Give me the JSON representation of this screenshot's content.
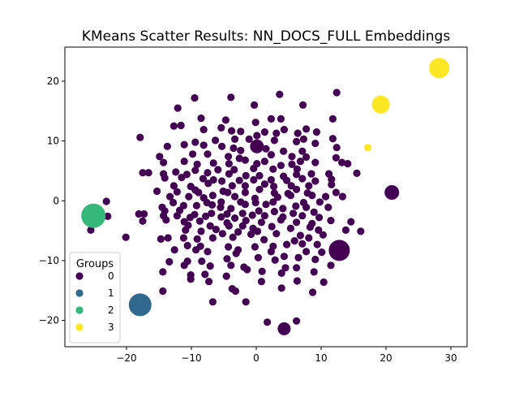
{
  "chart_data": {
    "type": "scatter",
    "title": "KMeans Scatter Results: NN_DOCS_FULL Embeddings",
    "xlabel": "",
    "ylabel": "",
    "xlim": [
      -29.5,
      32.5
    ],
    "ylim": [
      -24.4,
      25.7
    ],
    "xticks": [
      -20,
      -10,
      0,
      10,
      20,
      30
    ],
    "yticks": [
      -20,
      -10,
      0,
      10,
      20
    ],
    "grid": false,
    "legend": {
      "title": "Groups",
      "placement": "lower-left",
      "entries": [
        "0",
        "1",
        "2",
        "3"
      ]
    },
    "colors": {
      "0": "#440154",
      "1": "#31688e",
      "2": "#35b779",
      "3": "#fde725"
    },
    "series": [
      {
        "name": "0",
        "points": [
          [
            -9.5,
            17.2
          ],
          [
            -3.9,
            17.3
          ],
          [
            3.6,
            17.8
          ],
          [
            7.2,
            16
          ],
          [
            12.4,
            18.1
          ],
          [
            -0.3,
            16
          ],
          [
            -12.1,
            15.5
          ],
          [
            -8.5,
            13.8
          ],
          [
            -4.7,
            13.5
          ],
          [
            -0.1,
            13.1
          ],
          [
            2.3,
            13.7
          ],
          [
            3.8,
            13.7
          ],
          [
            11.8,
            13.7
          ],
          [
            -12.7,
            12.5
          ],
          [
            -11.6,
            12.6
          ],
          [
            -8.1,
            11.9
          ],
          [
            -5.4,
            12.2
          ],
          [
            -3.8,
            11.7
          ],
          [
            -2.4,
            11.6
          ],
          [
            0.1,
            10.9
          ],
          [
            1.3,
            11.5
          ],
          [
            3.1,
            11.3
          ],
          [
            4.3,
            11.9
          ],
          [
            6.4,
            11.3
          ],
          [
            7.7,
            12
          ],
          [
            9.3,
            11.5
          ],
          [
            -17.9,
            10.6
          ],
          [
            -9.4,
            9.8
          ],
          [
            -6.3,
            10.1
          ],
          [
            -3.3,
            10.3
          ],
          [
            -1.1,
            10.3
          ],
          [
            2.8,
            10.1
          ],
          [
            6.2,
            9.9
          ],
          [
            7.3,
            10.3
          ],
          [
            9.1,
            9.6
          ],
          [
            11.8,
            10.4
          ],
          [
            -13.7,
            9.1
          ],
          [
            -11.1,
            9.4
          ],
          [
            -8.1,
            9.3
          ],
          [
            -5.3,
            9.1
          ],
          [
            -3.5,
            8.8
          ],
          [
            -2.4,
            8.4
          ],
          [
            1.5,
            8.7
          ],
          [
            4.2,
            8.3
          ],
          [
            7.1,
            8.3
          ],
          [
            12.4,
            8.9
          ],
          [
            -14.9,
            7.4
          ],
          [
            -9.8,
            7.8
          ],
          [
            -7.5,
            7.8
          ],
          [
            -4.3,
            7.4
          ],
          [
            -2.6,
            7.1
          ],
          [
            -1.7,
            6.8
          ],
          [
            2.3,
            7.7
          ],
          [
            5.5,
            7.4
          ],
          [
            7.7,
            7.3
          ],
          [
            12.3,
            7.2
          ],
          [
            -14.3,
            6.4
          ],
          [
            -11.1,
            6.6
          ],
          [
            -9.1,
            6.1
          ],
          [
            -6.6,
            6.3
          ],
          [
            -4.2,
            6.2
          ],
          [
            0.1,
            6.2
          ],
          [
            1.3,
            6.6
          ],
          [
            3.8,
            5.9
          ],
          [
            5.5,
            6.1
          ],
          [
            6.8,
            6.6
          ],
          [
            9.1,
            6.4
          ],
          [
            13.2,
            6.4
          ],
          [
            14.1,
            6.2
          ],
          [
            -9.4,
            5.1
          ],
          [
            -5.9,
            5.2
          ],
          [
            -3.4,
            5.2
          ],
          [
            -0.4,
            5.4
          ],
          [
            2.6,
            5.3
          ],
          [
            6.3,
            5.3
          ],
          [
            -17.5,
            4.7
          ],
          [
            -16.6,
            4.7
          ],
          [
            -14.3,
            4.5
          ],
          [
            -12.4,
            4.8
          ],
          [
            -10.7,
            4.4
          ],
          [
            -7.5,
            4.7
          ],
          [
            -4.2,
            4.5
          ],
          [
            -1.6,
            4.2
          ],
          [
            0.5,
            4.2
          ],
          [
            4.2,
            4.1
          ],
          [
            6.2,
            4.4
          ],
          [
            8.5,
            4.5
          ],
          [
            11.2,
            4.5
          ],
          [
            15.5,
            4.6
          ],
          [
            -14.1,
            3.8
          ],
          [
            -11.5,
            3.9
          ],
          [
            -8.2,
            3.7
          ],
          [
            -6.6,
            3.5
          ],
          [
            -5.3,
            3.3
          ],
          [
            -2.6,
            3.4
          ],
          [
            -0.4,
            3.5
          ],
          [
            2.3,
            3.5
          ],
          [
            4.7,
            3.4
          ],
          [
            7.1,
            3.7
          ],
          [
            9.1,
            3.3
          ],
          [
            11.6,
            3.6
          ],
          [
            -12.7,
            2.5
          ],
          [
            -10.1,
            2.4
          ],
          [
            -7.4,
            2.9
          ],
          [
            -3.7,
            2.5
          ],
          [
            -1.7,
            2.5
          ],
          [
            1.3,
            2.8
          ],
          [
            2.7,
            2.4
          ],
          [
            5.4,
            2.5
          ],
          [
            8.1,
            2.5
          ],
          [
            11.6,
            2.7
          ],
          [
            -15.3,
            1.6
          ],
          [
            -12.2,
            1.5
          ],
          [
            -9.4,
            1.8
          ],
          [
            -8.9,
            1.4
          ],
          [
            -5.1,
            1.6
          ],
          [
            -4.4,
            1.4
          ],
          [
            -1.7,
            1.4
          ],
          [
            0.5,
            1.9
          ],
          [
            2.8,
            1.3
          ],
          [
            4.9,
            1.2
          ],
          [
            6.2,
            1.9
          ],
          [
            7.9,
            1.3
          ],
          [
            12.3,
            1.4
          ],
          [
            -13.3,
            0.7
          ],
          [
            -10.4,
            0.7
          ],
          [
            -8.1,
            0.5
          ],
          [
            -6.7,
            0.9
          ],
          [
            -3.3,
            0.7
          ],
          [
            -0.2,
            0.4
          ],
          [
            3.3,
            0.6
          ],
          [
            5.3,
            0.9
          ],
          [
            8.6,
            0.9
          ],
          [
            10.7,
            0.7
          ],
          [
            13.3,
            0.7
          ],
          [
            -23.1,
            -0.1
          ],
          [
            -12.8,
            -0.3
          ],
          [
            -7.6,
            -0.3
          ],
          [
            -5.4,
            -0.2
          ],
          [
            -2.4,
            -0.2
          ],
          [
            -0.1,
            -0.3
          ],
          [
            2.6,
            -0.2
          ],
          [
            7.3,
            -0.3
          ],
          [
            9.8,
            -0.2
          ],
          [
            -14.5,
            -1.1
          ],
          [
            -11.2,
            -0.8
          ],
          [
            -9.2,
            -0.8
          ],
          [
            -6.8,
            -0.7
          ],
          [
            -5.5,
            -1.1
          ],
          [
            -3.9,
            -1.3
          ],
          [
            -1.7,
            -0.6
          ],
          [
            1.5,
            -0.6
          ],
          [
            4.1,
            -1.3
          ],
          [
            6.1,
            -0.9
          ],
          [
            7.7,
            -1.1
          ],
          [
            11.1,
            -1.1
          ],
          [
            -14.1,
            -1.7
          ],
          [
            -11.8,
            -1.6
          ],
          [
            -9.5,
            -2.3
          ],
          [
            -6.9,
            -2.1
          ],
          [
            -4.5,
            -2.2
          ],
          [
            -2.1,
            -2.1
          ],
          [
            0.4,
            -1.7
          ],
          [
            2.8,
            -1.8
          ],
          [
            5.7,
            -2.1
          ],
          [
            8.9,
            -1.9
          ],
          [
            -18.1,
            -2.2
          ],
          [
            -17.3,
            -2.2
          ],
          [
            -14.3,
            -2.5
          ],
          [
            -12.2,
            -2.5
          ],
          [
            -10.2,
            -2.8
          ],
          [
            -7.8,
            -2.6
          ],
          [
            -5.4,
            -2.7
          ],
          [
            -3.3,
            -2.9
          ],
          [
            -0.6,
            -2.4
          ],
          [
            1.3,
            -2.5
          ],
          [
            4.1,
            -2.7
          ],
          [
            7.1,
            -2.5
          ],
          [
            9.7,
            -2.8
          ],
          [
            -22.9,
            -2.6
          ],
          [
            -17.5,
            -3.4
          ],
          [
            -13.9,
            -3.2
          ],
          [
            -11.1,
            -3.5
          ],
          [
            -8.7,
            -3.4
          ],
          [
            -4.5,
            -3.7
          ],
          [
            -1.6,
            -3.3
          ],
          [
            0.8,
            -3.6
          ],
          [
            3.8,
            -3.2
          ],
          [
            6.2,
            -3.6
          ],
          [
            8.6,
            -3.8
          ],
          [
            11.5,
            -3.3
          ],
          [
            14.6,
            -3.5
          ],
          [
            -10.5,
            -4.1
          ],
          [
            -7.1,
            -4.2
          ],
          [
            -4.2,
            -4.2
          ],
          [
            -2.1,
            -4.2
          ],
          [
            -0.5,
            -4.6
          ],
          [
            2.4,
            -4.3
          ],
          [
            5.3,
            -4.6
          ],
          [
            8.3,
            -4.4
          ],
          [
            9.6,
            -4.9
          ],
          [
            13.8,
            -4.9
          ],
          [
            16.1,
            -5.1
          ],
          [
            -25.5,
            -4.9
          ],
          [
            -10.9,
            -4.9
          ],
          [
            -8.5,
            -5.1
          ],
          [
            -6.2,
            -4.8
          ],
          [
            -5.2,
            -5.5
          ],
          [
            -2.8,
            -5.2
          ],
          [
            -0.8,
            -5.6
          ],
          [
            0.2,
            -5.1
          ],
          [
            3.1,
            -5.5
          ],
          [
            6.8,
            -5.8
          ],
          [
            10.3,
            -5.7
          ],
          [
            -14.7,
            -6.4
          ],
          [
            -13.6,
            -6.2
          ],
          [
            -11.2,
            -6.2
          ],
          [
            -9.1,
            -6.4
          ],
          [
            -6.7,
            -6.2
          ],
          [
            -3.6,
            -6.1
          ],
          [
            1.2,
            -6.5
          ],
          [
            5.9,
            -6.7
          ],
          [
            8.1,
            -6.2
          ],
          [
            -20.1,
            -6.1
          ],
          [
            -10.6,
            -7.5
          ],
          [
            -8.6,
            -7.6
          ],
          [
            -4.3,
            -7.7
          ],
          [
            -2.8,
            -8.2
          ],
          [
            -0.2,
            -7.7
          ],
          [
            2.6,
            -7.6
          ],
          [
            4.7,
            -7.3
          ],
          [
            7.1,
            -7.2
          ],
          [
            9.4,
            -7.3
          ],
          [
            -12.6,
            -8.2
          ],
          [
            -9.3,
            -8.2
          ],
          [
            -7.5,
            -8.5
          ],
          [
            -3.1,
            -8.8
          ],
          [
            2.3,
            -8.5
          ],
          [
            4.3,
            -9.3
          ],
          [
            7.7,
            -8.5
          ],
          [
            10.1,
            -8.6
          ],
          [
            -13.4,
            -10.2
          ],
          [
            -10.6,
            -10.1
          ],
          [
            -8.4,
            -10.1
          ],
          [
            -4.5,
            -9.7
          ],
          [
            0.3,
            -9.5
          ],
          [
            2.9,
            -9.9
          ],
          [
            6.5,
            -9.5
          ],
          [
            9.1,
            -9.8
          ],
          [
            -11.1,
            -10.8
          ],
          [
            -7.1,
            -10.9
          ],
          [
            -3.9,
            -10.8
          ],
          [
            -1.9,
            -11.1
          ],
          [
            4.5,
            -11.2
          ],
          [
            6.2,
            -11.2
          ],
          [
            11.5,
            -10.8
          ],
          [
            -14.4,
            -11.9
          ],
          [
            -10.1,
            -12.4
          ],
          [
            -7.9,
            -12.3
          ],
          [
            -4.6,
            -12.6
          ],
          [
            -1.4,
            -11.5
          ],
          [
            0.9,
            -11.8
          ],
          [
            3.9,
            -12.1
          ],
          [
            8.9,
            -11.9
          ],
          [
            -10.1,
            -13.1
          ],
          [
            -7.3,
            -13.5
          ],
          [
            0.8,
            -13.5
          ],
          [
            3.9,
            -14.6
          ],
          [
            6.3,
            -13.4
          ],
          [
            10.4,
            -13.6
          ],
          [
            -14.4,
            -15.1
          ],
          [
            -3.7,
            -14.7
          ],
          [
            -3.2,
            -15.1
          ],
          [
            8.7,
            -15.3
          ],
          [
            -6.7,
            -16.9
          ],
          [
            -1.6,
            -16.9
          ],
          [
            1.7,
            -20.3
          ],
          [
            6.2,
            -20.1
          ]
        ]
      },
      {
        "name": "1",
        "points": [
          [
            -17.9,
            -17.4
          ]
        ]
      },
      {
        "name": "2",
        "points": [
          [
            -25.1,
            -2.5
          ]
        ]
      },
      {
        "name": "3",
        "points": [
          [
            28.2,
            22.2
          ],
          [
            19.2,
            16.1
          ],
          [
            17.2,
            8.9
          ]
        ]
      }
    ],
    "emphasized_points": [
      {
        "group": "0",
        "x": 0.1,
        "y": 9.1
      },
      {
        "group": "0",
        "x": 20.9,
        "y": 1.4
      },
      {
        "group": "0",
        "x": 12.8,
        "y": -8.3
      },
      {
        "group": "0",
        "x": 4.3,
        "y": -21.4
      },
      {
        "group": "1",
        "x": -17.9,
        "y": -17.4
      },
      {
        "group": "2",
        "x": -25.1,
        "y": -2.5
      },
      {
        "group": "3",
        "x": 28.2,
        "y": 22.2
      },
      {
        "group": "3",
        "x": 19.2,
        "y": 16.1
      }
    ]
  }
}
